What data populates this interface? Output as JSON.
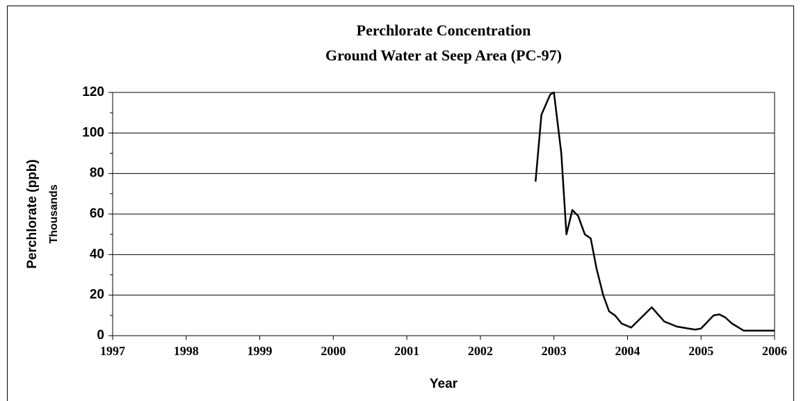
{
  "chart_data": {
    "type": "line",
    "title": "Perchlorate Concentration",
    "subtitle": "Ground Water at Seep Area (PC-97)",
    "xlabel": "Year",
    "ylabel": "Perchlorate  (ppb)",
    "yunit": "Thousands",
    "xlim": [
      1997,
      2006
    ],
    "xticks": [
      1997,
      1998,
      1999,
      2000,
      2001,
      2002,
      2003,
      2004,
      2005,
      2006
    ],
    "ylim": [
      0,
      120
    ],
    "yticks": [
      0,
      20,
      40,
      60,
      80,
      100,
      120
    ],
    "yminorticks": [
      10,
      30,
      50,
      70,
      90,
      110
    ],
    "grid": true,
    "series": [
      {
        "name": "PC-97",
        "color": "#000000",
        "x": [
          2002.75,
          2002.83,
          2002.95,
          2003.0,
          2003.1,
          2003.17,
          2003.25,
          2003.33,
          2003.42,
          2003.5,
          2003.58,
          2003.67,
          2003.75,
          2003.83,
          2003.92,
          2004.05,
          2004.33,
          2004.5,
          2004.67,
          2004.83,
          2004.92,
          2005.0,
          2005.17,
          2005.25,
          2005.33,
          2005.42,
          2005.58,
          2006.0
        ],
        "values": [
          76,
          109,
          119,
          120,
          90,
          50,
          62,
          59,
          50,
          48,
          33,
          20,
          12,
          10,
          6,
          4,
          14,
          7,
          4.5,
          3.5,
          3,
          3.5,
          10,
          10.5,
          9,
          6,
          2.5,
          2.5
        ]
      }
    ]
  }
}
